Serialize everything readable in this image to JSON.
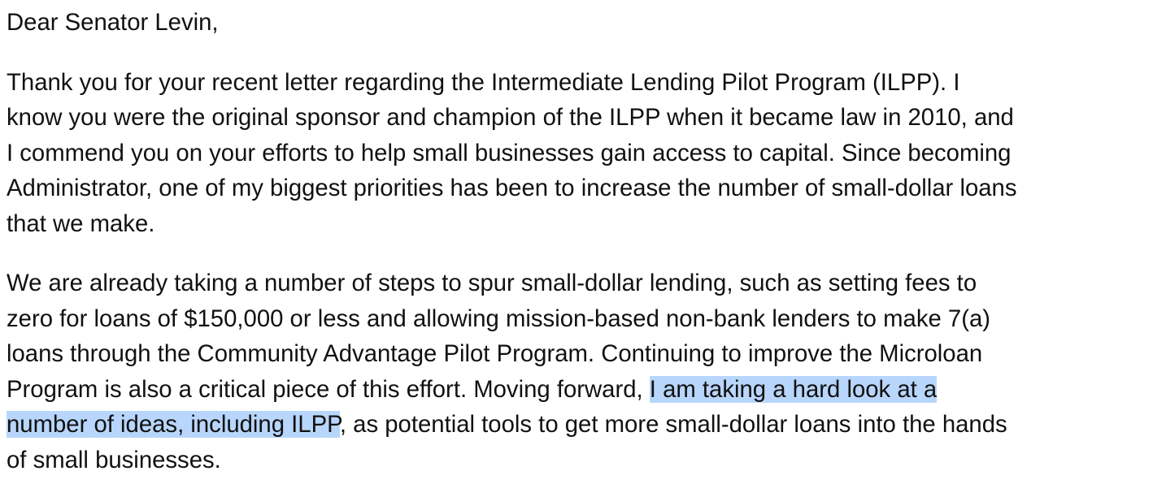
{
  "document": {
    "salutation": "Dear Senator Levin,",
    "paragraphs": [
      {
        "lines": [
          "Thank you for your recent letter regarding the Intermediate Lending Pilot Program (ILPP). I",
          "know you were the original sponsor and champion of the ILPP when it became law in 2010, and",
          "I commend you on your efforts to help small businesses gain access to capital. Since becoming",
          "Administrator, one of my biggest priorities has been to increase the number of small-dollar loans",
          "that we make."
        ]
      },
      {
        "lines": [
          "We are already taking a number of steps to spur small-dollar lending, such as setting fees to",
          "zero for loans of $150,000 or less and allowing mission-based non-bank lenders to make 7(a)",
          "loans through the Community Advantage Pilot Program. Continuing to improve the Microloan"
        ],
        "line4_before": "Program is also a critical piece of this effort. Moving forward, ",
        "highlight_line4": "I am taking a hard look at a",
        "highlight_line5": "number of ideas, including ILPP",
        "line5_after": ", as potential tools to get more small-dollar loans into the hands",
        "last_line": "of small businesses."
      }
    ],
    "highlight_color": "#b8d6fb"
  }
}
